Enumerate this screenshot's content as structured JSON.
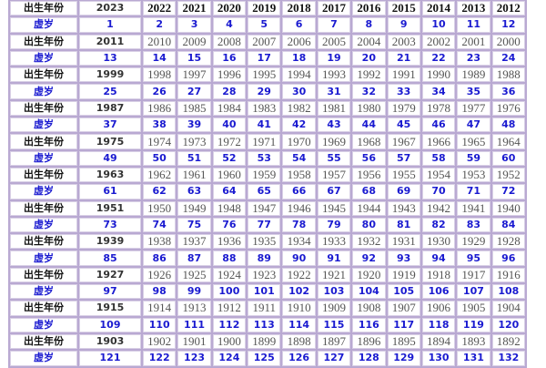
{
  "labels": {
    "birth_year": "出生年份",
    "nominal_age": "虚岁"
  },
  "colors": {
    "border": "#b9a9d2",
    "age_text": "#1a1ad0"
  },
  "rows": [
    {
      "years": [
        2023,
        2022,
        2021,
        2020,
        2019,
        2018,
        2017,
        2016,
        2015,
        2014,
        2013,
        2012
      ],
      "ages": [
        1,
        2,
        3,
        4,
        5,
        6,
        7,
        8,
        9,
        10,
        11,
        12
      ]
    },
    {
      "years": [
        2011,
        2010,
        2009,
        2008,
        2007,
        2006,
        2005,
        2004,
        2003,
        2002,
        2001,
        2000
      ],
      "ages": [
        13,
        14,
        15,
        16,
        17,
        18,
        19,
        20,
        21,
        22,
        23,
        24
      ]
    },
    {
      "years": [
        1999,
        1998,
        1997,
        1996,
        1995,
        1994,
        1993,
        1992,
        1991,
        1990,
        1989,
        1988
      ],
      "ages": [
        25,
        26,
        27,
        28,
        29,
        30,
        31,
        32,
        33,
        34,
        35,
        36
      ]
    },
    {
      "years": [
        1987,
        1986,
        1985,
        1984,
        1983,
        1982,
        1981,
        1980,
        1979,
        1978,
        1977,
        1976
      ],
      "ages": [
        37,
        38,
        39,
        40,
        41,
        42,
        43,
        44,
        45,
        46,
        47,
        48
      ]
    },
    {
      "years": [
        1975,
        1974,
        1973,
        1972,
        1971,
        1970,
        1969,
        1968,
        1967,
        1966,
        1965,
        1964
      ],
      "ages": [
        49,
        50,
        51,
        52,
        53,
        54,
        55,
        56,
        57,
        58,
        59,
        60
      ]
    },
    {
      "years": [
        1963,
        1962,
        1961,
        1960,
        1959,
        1958,
        1957,
        1956,
        1955,
        1954,
        1953,
        1952
      ],
      "ages": [
        61,
        62,
        63,
        64,
        65,
        66,
        67,
        68,
        69,
        70,
        71,
        72
      ]
    },
    {
      "years": [
        1951,
        1950,
        1949,
        1948,
        1947,
        1946,
        1945,
        1944,
        1943,
        1942,
        1941,
        1940
      ],
      "ages": [
        73,
        74,
        75,
        76,
        77,
        78,
        79,
        80,
        81,
        82,
        83,
        84
      ]
    },
    {
      "years": [
        1939,
        1938,
        1937,
        1936,
        1935,
        1934,
        1933,
        1932,
        1931,
        1930,
        1929,
        1928
      ],
      "ages": [
        85,
        86,
        87,
        88,
        89,
        90,
        91,
        92,
        93,
        94,
        95,
        96
      ]
    },
    {
      "years": [
        1927,
        1926,
        1925,
        1924,
        1923,
        1922,
        1921,
        1920,
        1919,
        1918,
        1917,
        1916
      ],
      "ages": [
        97,
        98,
        99,
        100,
        101,
        102,
        103,
        104,
        105,
        106,
        107,
        108
      ]
    },
    {
      "years": [
        1915,
        1914,
        1913,
        1912,
        1911,
        1910,
        1909,
        1908,
        1907,
        1906,
        1905,
        1904
      ],
      "ages": [
        109,
        110,
        111,
        112,
        113,
        114,
        115,
        116,
        117,
        118,
        119,
        120
      ]
    },
    {
      "years": [
        1903,
        1902,
        1901,
        1900,
        1899,
        1898,
        1897,
        1896,
        1895,
        1894,
        1893,
        1892
      ],
      "ages": [
        121,
        122,
        123,
        124,
        125,
        126,
        127,
        128,
        129,
        130,
        131,
        132
      ]
    }
  ]
}
